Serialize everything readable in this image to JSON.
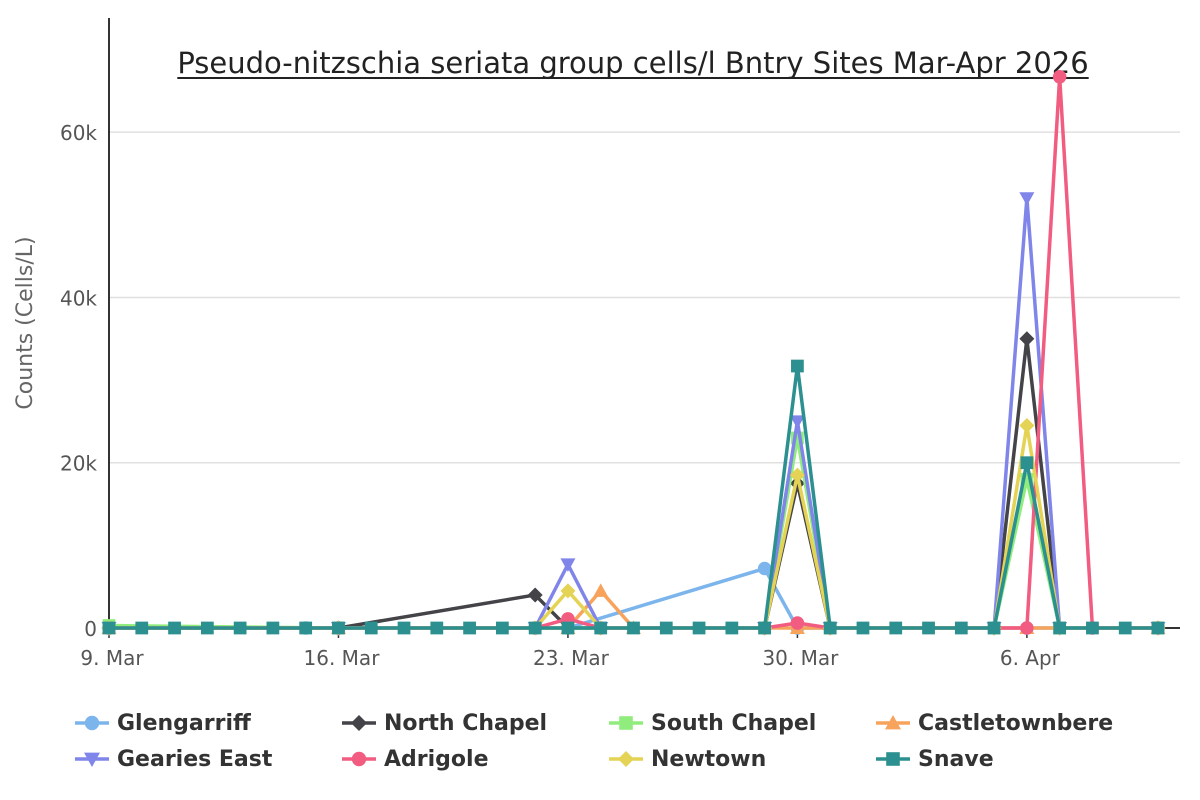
{
  "chart_data": {
    "type": "line",
    "title": "Pseudo-nitzschia seriata group cells/l Bntry Sites Mar-Apr 2026",
    "ylabel": "Counts (Cells/L)",
    "xlabel": "",
    "ylim": [
      0,
      72000
    ],
    "yticks": [
      0,
      20000,
      40000,
      60000
    ],
    "ytick_labels": [
      "0",
      "20k",
      "40k",
      "60k"
    ],
    "xticks": [
      "2026-03-09",
      "2026-03-16",
      "2026-03-23",
      "2026-03-30",
      "2026-04-06"
    ],
    "xtick_labels": [
      "9. Mar",
      "16. Mar",
      "23. Mar",
      "30. Mar",
      "6. Apr"
    ],
    "xlim": [
      "2026-03-09",
      "2026-04-10"
    ],
    "grid": true,
    "legend_position": "bottom",
    "series": [
      {
        "name": "Glengarriff",
        "color": "#7cb5ec",
        "marker": "circle",
        "points": [
          [
            "2026-03-09",
            0
          ],
          [
            "2026-03-15",
            0
          ],
          [
            "2026-03-16",
            0
          ],
          [
            "2026-03-22",
            0
          ],
          [
            "2026-03-23",
            0
          ],
          [
            "2026-03-29",
            7200
          ],
          [
            "2026-03-30",
            0
          ],
          [
            "2026-04-05",
            0
          ],
          [
            "2026-04-06",
            0
          ],
          [
            "2026-04-10",
            0
          ]
        ]
      },
      {
        "name": "North Chapel",
        "color": "#434348",
        "marker": "diamond",
        "points": [
          [
            "2026-03-09",
            0
          ],
          [
            "2026-03-16",
            0
          ],
          [
            "2026-03-22",
            4000
          ],
          [
            "2026-03-23",
            0
          ],
          [
            "2026-03-29",
            0
          ],
          [
            "2026-03-30",
            17500
          ],
          [
            "2026-03-31",
            0
          ],
          [
            "2026-04-05",
            0
          ],
          [
            "2026-04-06",
            35000
          ],
          [
            "2026-04-07",
            0
          ],
          [
            "2026-04-10",
            0
          ]
        ]
      },
      {
        "name": "South Chapel",
        "color": "#90ed7d",
        "marker": "square",
        "points": [
          [
            "2026-03-09",
            300
          ],
          [
            "2026-03-16",
            0
          ],
          [
            "2026-03-23",
            0
          ],
          [
            "2026-03-29",
            0
          ],
          [
            "2026-03-30",
            23000
          ],
          [
            "2026-03-31",
            0
          ],
          [
            "2026-04-05",
            0
          ],
          [
            "2026-04-06",
            18000
          ],
          [
            "2026-04-07",
            0
          ],
          [
            "2026-04-10",
            0
          ]
        ]
      },
      {
        "name": "Castletownbere",
        "color": "#f7a35c",
        "marker": "triangle",
        "points": [
          [
            "2026-03-09",
            0
          ],
          [
            "2026-03-16",
            0
          ],
          [
            "2026-03-23",
            0
          ],
          [
            "2026-03-24",
            4500
          ],
          [
            "2026-03-25",
            0
          ],
          [
            "2026-03-30",
            0
          ],
          [
            "2026-04-06",
            0
          ],
          [
            "2026-04-10",
            0
          ]
        ]
      },
      {
        "name": "Gearies East",
        "color": "#8085e9",
        "marker": "triangle-down",
        "points": [
          [
            "2026-03-09",
            0
          ],
          [
            "2026-03-16",
            0
          ],
          [
            "2026-03-22",
            0
          ],
          [
            "2026-03-23",
            7700
          ],
          [
            "2026-03-24",
            0
          ],
          [
            "2026-03-29",
            0
          ],
          [
            "2026-03-30",
            25000
          ],
          [
            "2026-03-31",
            0
          ],
          [
            "2026-04-05",
            0
          ],
          [
            "2026-04-06",
            52000
          ],
          [
            "2026-04-07",
            0
          ],
          [
            "2026-04-10",
            0
          ]
        ]
      },
      {
        "name": "Adrigole",
        "color": "#f15c80",
        "marker": "circle",
        "points": [
          [
            "2026-03-09",
            0
          ],
          [
            "2026-03-16",
            0
          ],
          [
            "2026-03-22",
            0
          ],
          [
            "2026-03-23",
            1100
          ],
          [
            "2026-03-24",
            0
          ],
          [
            "2026-03-29",
            0
          ],
          [
            "2026-03-30",
            600
          ],
          [
            "2026-03-31",
            0
          ],
          [
            "2026-04-06",
            0
          ],
          [
            "2026-04-07",
            66700
          ],
          [
            "2026-04-08",
            0
          ],
          [
            "2026-04-10",
            0
          ]
        ]
      },
      {
        "name": "Newtown",
        "color": "#e4d354",
        "marker": "diamond",
        "points": [
          [
            "2026-03-09",
            0
          ],
          [
            "2026-03-16",
            0
          ],
          [
            "2026-03-22",
            0
          ],
          [
            "2026-03-23",
            4500
          ],
          [
            "2026-03-24",
            0
          ],
          [
            "2026-03-29",
            0
          ],
          [
            "2026-03-30",
            18500
          ],
          [
            "2026-03-31",
            0
          ],
          [
            "2026-04-05",
            0
          ],
          [
            "2026-04-06",
            24500
          ],
          [
            "2026-04-07",
            0
          ],
          [
            "2026-04-10",
            0
          ]
        ]
      },
      {
        "name": "Snave",
        "color": "#2b908f",
        "marker": "square",
        "points": [
          [
            "2026-03-09",
            0
          ],
          [
            "2026-03-10",
            0
          ],
          [
            "2026-03-11",
            0
          ],
          [
            "2026-03-12",
            0
          ],
          [
            "2026-03-13",
            0
          ],
          [
            "2026-03-14",
            0
          ],
          [
            "2026-03-15",
            0
          ],
          [
            "2026-03-16",
            0
          ],
          [
            "2026-03-17",
            0
          ],
          [
            "2026-03-18",
            0
          ],
          [
            "2026-03-19",
            0
          ],
          [
            "2026-03-20",
            0
          ],
          [
            "2026-03-21",
            0
          ],
          [
            "2026-03-22",
            0
          ],
          [
            "2026-03-23",
            0
          ],
          [
            "2026-03-24",
            0
          ],
          [
            "2026-03-25",
            0
          ],
          [
            "2026-03-26",
            0
          ],
          [
            "2026-03-27",
            0
          ],
          [
            "2026-03-28",
            0
          ],
          [
            "2026-03-29",
            0
          ],
          [
            "2026-03-30",
            31700
          ],
          [
            "2026-03-31",
            0
          ],
          [
            "2026-04-01",
            0
          ],
          [
            "2026-04-02",
            0
          ],
          [
            "2026-04-03",
            0
          ],
          [
            "2026-04-04",
            0
          ],
          [
            "2026-04-05",
            0
          ],
          [
            "2026-04-06",
            20000
          ],
          [
            "2026-04-07",
            0
          ],
          [
            "2026-04-08",
            0
          ],
          [
            "2026-04-09",
            0
          ],
          [
            "2026-04-10",
            0
          ]
        ]
      }
    ]
  }
}
